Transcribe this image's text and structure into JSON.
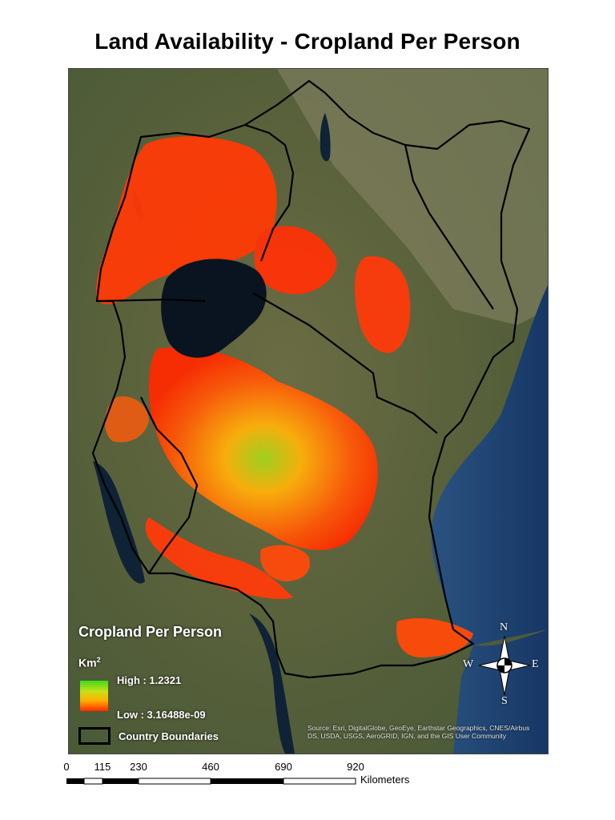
{
  "title": "Land Availability - Cropland Per Person",
  "legend": {
    "title": "Cropland Per Person",
    "units_base": "Km",
    "units_exp": "2",
    "high_label": "High : 1.2321",
    "low_label": "Low : 3.16488e-09",
    "ramp_colors": [
      "#3ddc1a",
      "#c8e018",
      "#ffb000",
      "#ff2a00"
    ],
    "boundary_label": "Country Boundaries"
  },
  "attribution": "Source: Esri, DigitalGlobe, GeoEye, Earthstar Geographics, CNES/Airbus DS, USDA, USGS, AeroGRID, IGN, and the GIS User Community",
  "compass": {
    "north": "N",
    "south": "S",
    "east": "E",
    "west": "W"
  },
  "scale_bar": {
    "ticks": [
      "0",
      "115",
      "230",
      "460",
      "690",
      "920"
    ],
    "units": "Kilometers"
  },
  "colors": {
    "land": "#5f6b3e",
    "ocean": "#1f3c6e",
    "lake": "#0d1a2b",
    "boundary": "#000000"
  }
}
